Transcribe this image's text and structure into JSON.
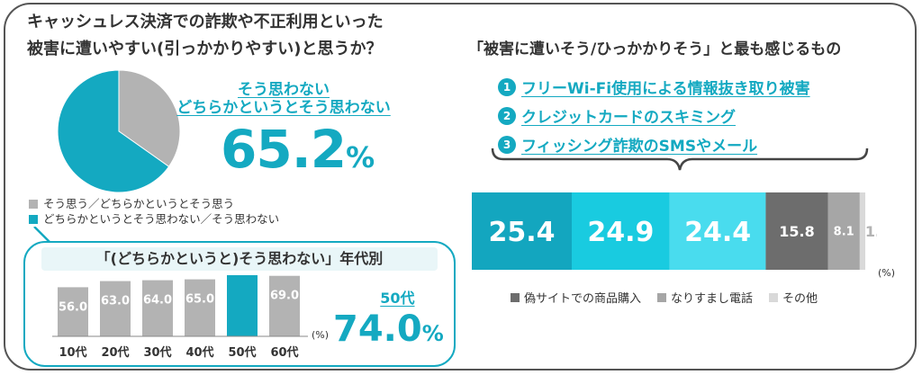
{
  "left": {
    "title_line1": "キャッシュレス決済での詐欺や不正利用といった",
    "title_line2": "被害に遭いやすい(引っかかりやすい)と思うか？",
    "pie_label_line1": "そう思わない",
    "pie_label_line2": "どちらかというとそう思わない",
    "pie_value": "65.2",
    "pie_unit": "%",
    "legend": [
      {
        "label": "そう思う／どちらかというとそう思う",
        "color": "#b3b3b3"
      },
      {
        "label": "どちらかというとそう思わない／そう思わない",
        "color": "#14a9c1"
      }
    ],
    "age_title": "「(どちらかというと)そう思わない」年代別",
    "age_unit": "(%)",
    "callout_label": "50代",
    "callout_value": "74.0",
    "callout_unit": "%"
  },
  "right": {
    "title": "「被害に遭いそう/ひっかかりそう」と最も感じるもの",
    "ranks": [
      {
        "num": "1",
        "text": "フリーWi-Fi使用による情報抜き取り被害"
      },
      {
        "num": "2",
        "text": "クレジットカードのスキミング"
      },
      {
        "num": "3",
        "text": "フィッシング詐欺のSMSやメール"
      }
    ],
    "pct_unit": "(%)",
    "legend": [
      {
        "label": "偽サイトでの商品購入",
        "color": "#6d6d6d"
      },
      {
        "label": "なりすまし電話",
        "color": "#a6a6a6"
      },
      {
        "label": "その他",
        "color": "#d9d9d9"
      }
    ]
  },
  "chart_data": [
    {
      "type": "pie",
      "labels": [
        "そう思う／どちらかというとそう思う",
        "どちらかというとそう思わない／そう思わない"
      ],
      "values": [
        34.8,
        65.2
      ],
      "colors": [
        "#b3b3b3",
        "#14a9c1"
      ]
    },
    {
      "type": "bar",
      "title": "「(どちらかというと)そう思わない」年代別",
      "categories": [
        "10代",
        "20代",
        "30代",
        "40代",
        "50代",
        "60代"
      ],
      "values": [
        56.0,
        63.0,
        64.0,
        65.0,
        74.0,
        69.0
      ],
      "highlight": "50代",
      "colors": [
        "#b3b3b3",
        "#14a9c1"
      ]
    },
    {
      "type": "bar",
      "stacked": true,
      "title": "「被害に遭いそう/ひっかかりそう」と最も感じるもの",
      "series": [
        {
          "name": "フリーWi-Fi使用による情報抜き取り被害",
          "value": 25.4,
          "color": "#13a6bf"
        },
        {
          "name": "クレジットカードのスキミング",
          "value": 24.9,
          "color": "#19cbe0"
        },
        {
          "name": "フィッシング詐欺のSMSやメール",
          "value": 24.4,
          "color": "#49dcee"
        },
        {
          "name": "偽サイトでの商品購入",
          "value": 15.8,
          "color": "#6d6d6d"
        },
        {
          "name": "なりすまし電話",
          "value": 8.1,
          "color": "#a6a6a6"
        },
        {
          "name": "その他",
          "value": 1.4,
          "color": "#d9d9d9"
        }
      ]
    }
  ]
}
